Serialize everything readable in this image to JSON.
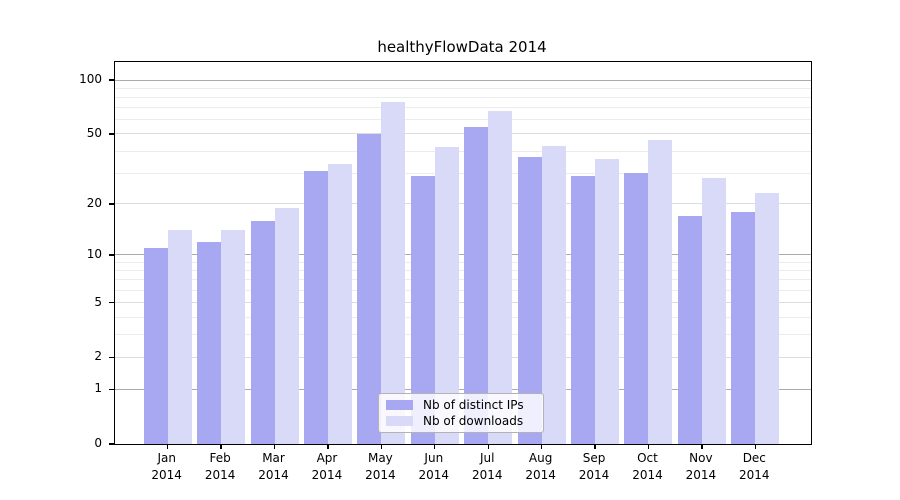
{
  "title": "healthyFlowData 2014",
  "colors": {
    "ips_bar": "#a8a8f2",
    "downloads_bar": "#d9d9f8",
    "grid_major": "#ababab",
    "grid_labeled": "#dcdcdc",
    "grid_minor": "#ececec",
    "axis": "#000000",
    "legend_border": "#b3b3b3"
  },
  "y_axis": {
    "scale": "symlog",
    "labeled_ticks": [
      100,
      50,
      20,
      10,
      5,
      2,
      1,
      0
    ],
    "major_gridlines": [
      100,
      10,
      1
    ],
    "labeled_gridlines": [
      50,
      20,
      5,
      2
    ],
    "minor_gridlines": [
      90,
      80,
      70,
      60,
      40,
      30,
      9,
      8,
      7,
      6,
      4,
      3
    ]
  },
  "x_axis": {
    "tick_labels_line1": [
      "Jan",
      "Feb",
      "Mar",
      "Apr",
      "May",
      "Jun",
      "Jul",
      "Aug",
      "Sep",
      "Oct",
      "Nov",
      "Dec"
    ],
    "tick_labels_line2": "2014"
  },
  "legend": {
    "items": [
      {
        "key": "ips",
        "label": "Nb of distinct IPs",
        "color_key": "ips_bar"
      },
      {
        "key": "downloads",
        "label": "Nb of downloads",
        "color_key": "downloads_bar"
      }
    ]
  },
  "chart_data": {
    "type": "bar",
    "title": "healthyFlowData 2014",
    "categories": [
      "Jan 2014",
      "Feb 2014",
      "Mar 2014",
      "Apr 2014",
      "May 2014",
      "Jun 2014",
      "Jul 2014",
      "Aug 2014",
      "Sep 2014",
      "Oct 2014",
      "Nov 2014",
      "Dec 2014"
    ],
    "series": [
      {
        "name": "Nb of distinct IPs",
        "key": "ips",
        "values": [
          11,
          12,
          16,
          31,
          50,
          29,
          55,
          37,
          29,
          30,
          17,
          18
        ]
      },
      {
        "name": "Nb of downloads",
        "key": "downloads",
        "values": [
          14,
          14,
          19,
          34,
          75,
          42,
          67,
          43,
          36,
          46,
          28,
          23
        ]
      }
    ],
    "xlabel": "",
    "ylabel": "",
    "ylim": [
      0,
      126
    ],
    "y_scale_note": "position proportional to ln(1+value)",
    "grid": "horizontal",
    "legend_position": "lower center inside plot"
  }
}
